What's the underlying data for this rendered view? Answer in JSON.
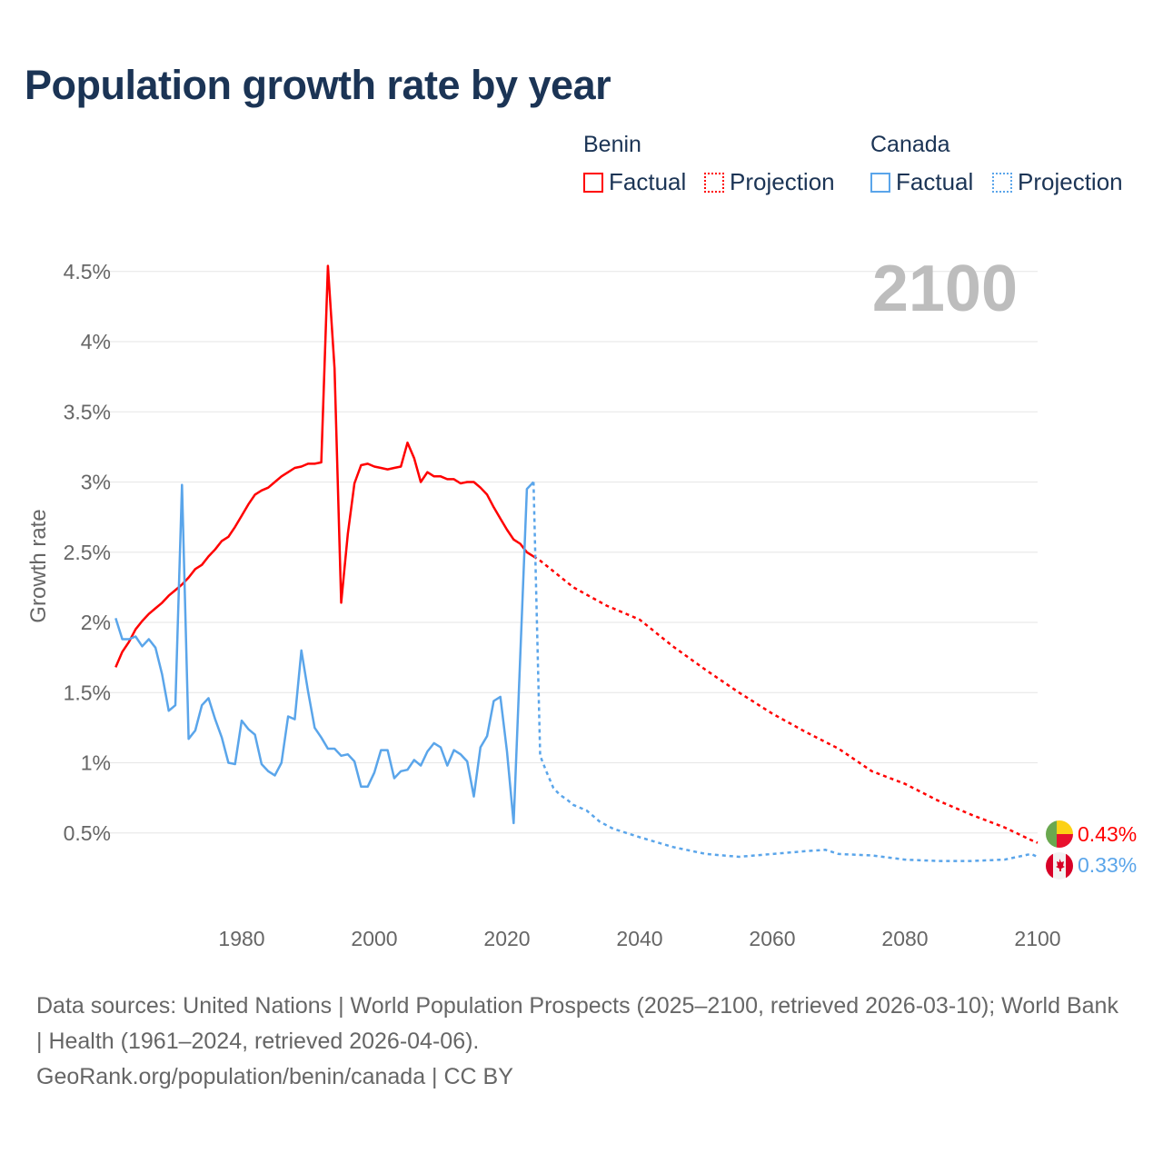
{
  "title": "Population growth rate by year",
  "legend": {
    "groups": [
      {
        "country": "Benin",
        "factual": "Factual",
        "projection": "Projection",
        "color": "#ff0000"
      },
      {
        "country": "Canada",
        "factual": "Factual",
        "projection": "Projection",
        "color": "#5aa5ea"
      }
    ]
  },
  "chart_data": {
    "type": "line",
    "title": "Population growth rate by year",
    "xlabel": "",
    "ylabel": "Growth rate",
    "xlim": [
      1961,
      2100
    ],
    "ylim": [
      0,
      4.7
    ],
    "x_ticks": [
      1980,
      2000,
      2020,
      2040,
      2060,
      2080,
      2100
    ],
    "x_tick_labels": [
      "1980",
      "2000",
      "2020",
      "2040",
      "2060",
      "2080",
      "2100"
    ],
    "y_ticks": [
      0.5,
      1,
      1.5,
      2,
      2.5,
      3,
      3.5,
      4,
      4.5
    ],
    "y_tick_labels": [
      "0.5%",
      "1%",
      "1.5%",
      "2%",
      "2.5%",
      "3%",
      "3.5%",
      "4%",
      "4.5%"
    ],
    "grid": true,
    "year_watermark": "2100",
    "series": [
      {
        "name": "Benin",
        "color": "#ff0000",
        "end_label": "0.43%",
        "factual": {
          "start_year": 1961,
          "values": [
            1.68,
            1.79,
            1.86,
            1.95,
            2.01,
            2.06,
            2.1,
            2.14,
            2.19,
            2.23,
            2.27,
            2.32,
            2.38,
            2.41,
            2.47,
            2.52,
            2.58,
            2.61,
            2.68,
            2.76,
            2.84,
            2.91,
            2.94,
            2.96,
            3.0,
            3.04,
            3.07,
            3.1,
            3.11,
            3.13,
            3.13,
            3.14,
            4.54,
            3.81,
            2.14,
            2.63,
            2.99,
            3.12,
            3.13,
            3.11,
            3.1,
            3.09,
            3.1,
            3.11,
            3.28,
            3.17,
            3.0,
            3.07,
            3.04,
            3.04,
            3.02,
            3.02,
            2.99,
            3.0,
            3.0,
            2.96,
            2.91,
            2.82,
            2.74,
            2.66,
            2.59,
            2.56,
            2.5,
            2.47
          ]
        },
        "projection": {
          "years": [
            2024,
            2025,
            2030,
            2035,
            2040,
            2045,
            2050,
            2055,
            2060,
            2065,
            2070,
            2075,
            2080,
            2085,
            2090,
            2095,
            2099,
            2100
          ],
          "values": [
            2.47,
            2.44,
            2.25,
            2.12,
            2.02,
            1.83,
            1.66,
            1.5,
            1.35,
            1.22,
            1.1,
            0.94,
            0.85,
            0.73,
            0.63,
            0.54,
            0.45,
            0.43
          ]
        }
      },
      {
        "name": "Canada",
        "color": "#5aa5ea",
        "end_label": "0.33%",
        "factual": {
          "start_year": 1961,
          "values": [
            2.03,
            1.88,
            1.88,
            1.9,
            1.83,
            1.88,
            1.82,
            1.63,
            1.37,
            1.41,
            2.98,
            1.17,
            1.23,
            1.41,
            1.46,
            1.31,
            1.18,
            1.0,
            0.99,
            1.3,
            1.24,
            1.2,
            0.99,
            0.94,
            0.91,
            1.0,
            1.33,
            1.31,
            1.8,
            1.51,
            1.25,
            1.18,
            1.1,
            1.1,
            1.05,
            1.06,
            1.01,
            0.83,
            0.83,
            0.93,
            1.09,
            1.09,
            0.89,
            0.94,
            0.95,
            1.02,
            0.98,
            1.08,
            1.14,
            1.11,
            0.98,
            1.09,
            1.06,
            1.01,
            0.76,
            1.11,
            1.19,
            1.44,
            1.47,
            1.08,
            0.57,
            1.76,
            2.95,
            3.0
          ]
        },
        "projection": {
          "years": [
            2024,
            2025,
            2026,
            2027,
            2028,
            2029,
            2030,
            2032,
            2034,
            2036,
            2040,
            2045,
            2050,
            2055,
            2060,
            2065,
            2068,
            2070,
            2075,
            2080,
            2085,
            2090,
            2095,
            2099,
            2100
          ],
          "values": [
            3.0,
            1.05,
            0.93,
            0.82,
            0.77,
            0.74,
            0.7,
            0.66,
            0.58,
            0.53,
            0.47,
            0.4,
            0.35,
            0.33,
            0.35,
            0.37,
            0.38,
            0.35,
            0.34,
            0.31,
            0.3,
            0.3,
            0.31,
            0.35,
            0.33
          ]
        }
      }
    ]
  },
  "footer": {
    "sources": "Data sources: United Nations | World Population Prospects (2025–2100, retrieved 2026-03-10); World Bank | Health (1961–2024, retrieved 2026-04-06).",
    "link": "GeoRank.org/population/benin/canada | CC BY"
  }
}
